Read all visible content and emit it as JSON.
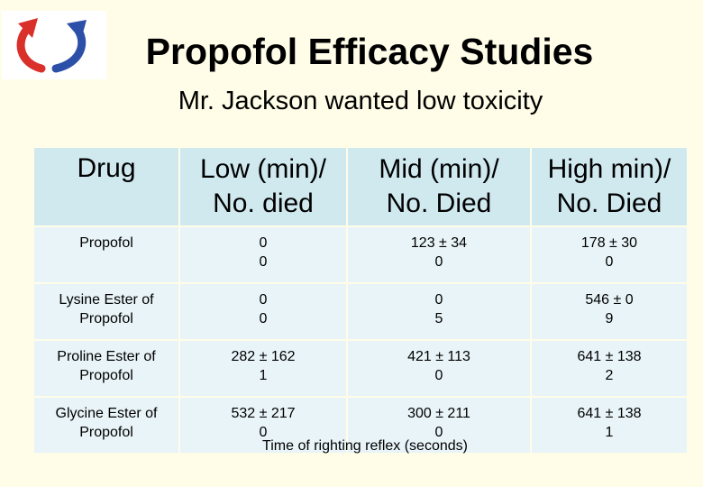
{
  "logo": {
    "icon": "two-curved-arrows-logo",
    "colors": [
      "#d9302a",
      "#2c4fa8"
    ]
  },
  "title": "Propofol Efficacy Studies",
  "subtitle": "Mr. Jackson wanted low toxicity",
  "table": {
    "headers": [
      [
        "Drug"
      ],
      [
        "Low (min)/",
        "No. died"
      ],
      [
        "Mid (min)/",
        "No. Died"
      ],
      [
        "High min)/",
        "No. Died"
      ]
    ],
    "rows": [
      [
        [
          "Propofol"
        ],
        [
          "0",
          "0"
        ],
        [
          "123 ± 34",
          "0"
        ],
        [
          "178 ± 30",
          "0"
        ]
      ],
      [
        [
          "Lysine Ester of",
          "Propofol"
        ],
        [
          "0",
          "0"
        ],
        [
          "0",
          "5"
        ],
        [
          "546 ± 0",
          "9"
        ]
      ],
      [
        [
          "Proline Ester of",
          "Propofol"
        ],
        [
          "282 ± 162",
          "1"
        ],
        [
          "421 ± 113",
          "0"
        ],
        [
          "641 ± 138",
          "2"
        ]
      ],
      [
        [
          "Glycine Ester of",
          "Propofol"
        ],
        [
          "532 ± 217",
          "0"
        ],
        [
          "300 ± 211",
          "0"
        ],
        [
          "641 ± 138",
          "1"
        ]
      ]
    ],
    "header_bg": "#cfe9ef",
    "cell_bg": "#e8f4f8"
  },
  "footnote": "Time of righting reflex (seconds)"
}
